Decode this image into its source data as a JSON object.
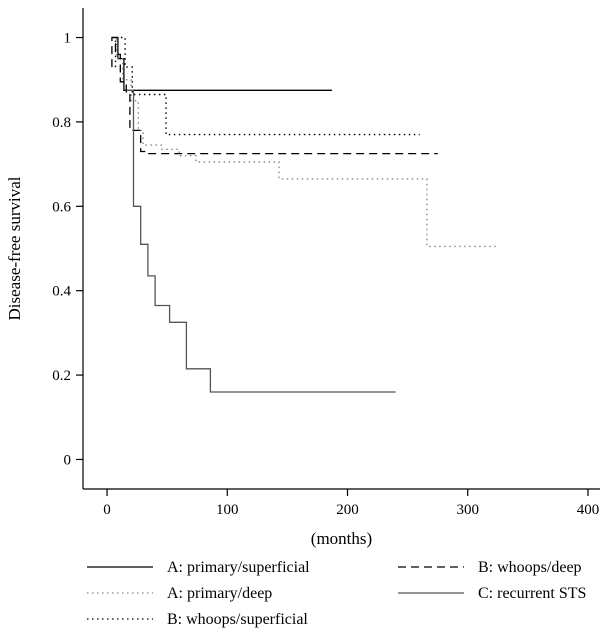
{
  "chart_data": {
    "type": "line",
    "step": true,
    "title": "",
    "xlabel": "(months)",
    "ylabel": "Disease-free survival",
    "xlim": [
      -20,
      410
    ],
    "ylim": [
      -0.07,
      1.07
    ],
    "xticks": [
      0,
      100,
      200,
      300,
      400
    ],
    "yticks": [
      0,
      0.2,
      0.4,
      0.6,
      0.8,
      1
    ],
    "ytick_labels": [
      "0",
      "0.2",
      "0.4",
      "0.6",
      "0.8",
      "1"
    ],
    "grid": false,
    "legend_position": "bottom",
    "series": [
      {
        "name": "A: primary/superficial",
        "color": "#000000",
        "dash": "solid",
        "points": [
          [
            4,
            1.0
          ],
          [
            9,
            1.0
          ],
          [
            9,
            0.95
          ],
          [
            14,
            0.95
          ],
          [
            14,
            0.875
          ],
          [
            187,
            0.875
          ]
        ]
      },
      {
        "name": "A: primary/deep",
        "color": "#888888",
        "dash": "dotted",
        "points": [
          [
            5,
            1.0
          ],
          [
            8,
            1.0
          ],
          [
            8,
            0.95
          ],
          [
            13,
            0.95
          ],
          [
            13,
            0.9
          ],
          [
            20,
            0.9
          ],
          [
            20,
            0.85
          ],
          [
            26,
            0.85
          ],
          [
            26,
            0.78
          ],
          [
            30,
            0.78
          ],
          [
            30,
            0.745
          ],
          [
            45,
            0.745
          ],
          [
            45,
            0.735
          ],
          [
            60,
            0.735
          ],
          [
            60,
            0.72
          ],
          [
            74,
            0.72
          ],
          [
            74,
            0.705
          ],
          [
            143,
            0.705
          ],
          [
            143,
            0.665
          ],
          [
            266,
            0.665
          ],
          [
            266,
            0.505
          ],
          [
            326,
            0.505
          ]
        ]
      },
      {
        "name": "B: whoops/superficial",
        "color": "#000000",
        "dash": "dotted",
        "points": [
          [
            7,
            0.93
          ],
          [
            7,
            1.0
          ],
          [
            15,
            1.0
          ],
          [
            15,
            0.93
          ],
          [
            21,
            0.93
          ],
          [
            21,
            0.865
          ],
          [
            49,
            0.865
          ],
          [
            49,
            0.77
          ],
          [
            260,
            0.77
          ]
        ]
      },
      {
        "name": "B: whoops/deep",
        "color": "#000000",
        "dash": "dashed",
        "points": [
          [
            4,
            0.93
          ],
          [
            4,
            1.0
          ],
          [
            7,
            1.0
          ],
          [
            7,
            0.96
          ],
          [
            11,
            0.96
          ],
          [
            11,
            0.895
          ],
          [
            16,
            0.895
          ],
          [
            16,
            0.865
          ],
          [
            19,
            0.865
          ],
          [
            19,
            0.78
          ],
          [
            28,
            0.78
          ],
          [
            28,
            0.73
          ],
          [
            34,
            0.73
          ],
          [
            34,
            0.725
          ],
          [
            275,
            0.725
          ]
        ]
      },
      {
        "name": "C: recurrent STS",
        "color": "#555555",
        "dash": "solid",
        "points": [
          [
            16,
            0.875
          ],
          [
            22,
            0.875
          ],
          [
            22,
            0.6
          ],
          [
            28,
            0.6
          ],
          [
            28,
            0.51
          ],
          [
            34,
            0.51
          ],
          [
            34,
            0.435
          ],
          [
            40,
            0.435
          ],
          [
            40,
            0.365
          ],
          [
            52,
            0.365
          ],
          [
            52,
            0.325
          ],
          [
            66,
            0.325
          ],
          [
            66,
            0.215
          ],
          [
            86,
            0.215
          ],
          [
            86,
            0.16
          ],
          [
            240,
            0.16
          ]
        ]
      }
    ]
  }
}
